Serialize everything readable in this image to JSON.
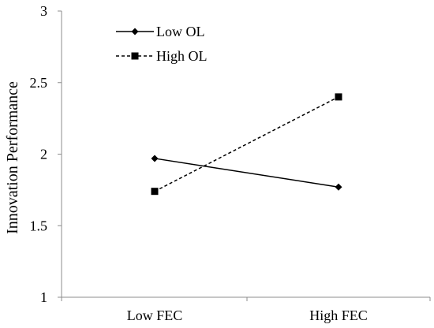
{
  "chart_data": {
    "type": "line",
    "categories": [
      "Low FEC",
      "High FEC"
    ],
    "ylabel": "Innovation Performance",
    "ylim": [
      1,
      3
    ],
    "yticks": [
      "1",
      "1.5",
      "2",
      "2.5",
      "3"
    ],
    "grid": false,
    "legend_position": "top-left",
    "series": [
      {
        "name": "Low OL",
        "values": [
          1.97,
          1.77
        ],
        "line_style": "solid",
        "marker": "diamond",
        "color": "#000000"
      },
      {
        "name": "High OL",
        "values": [
          1.74,
          2.4
        ],
        "line_style": "dashed",
        "marker": "square",
        "color": "#000000"
      }
    ]
  }
}
